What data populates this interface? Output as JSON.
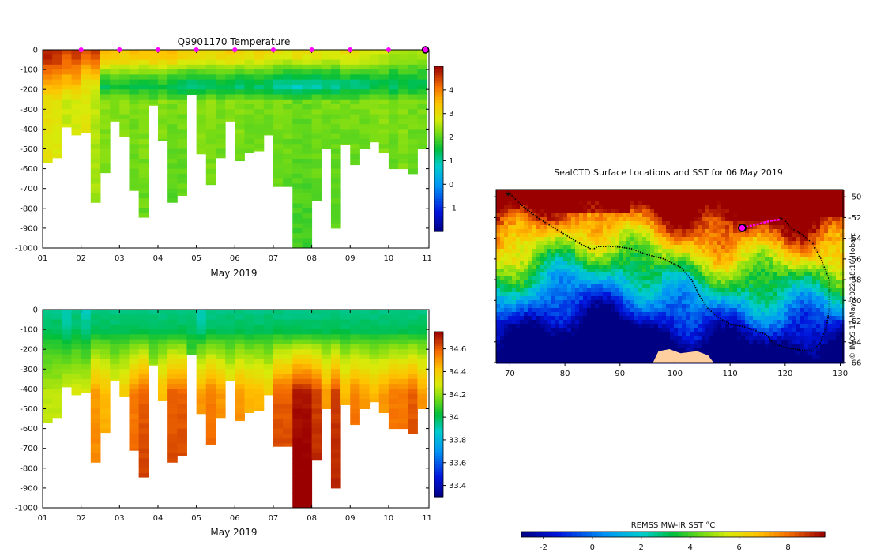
{
  "chart_data": [
    {
      "id": "temp-section",
      "type": "heatmap",
      "title": "Q9901170  Temperature",
      "xlabel": "May 2019",
      "ylabel": "",
      "xlim": [
        1,
        11.05
      ],
      "ylim": [
        -1000,
        0
      ],
      "x_ticks": [
        "01",
        "02",
        "03",
        "04",
        "05",
        "06",
        "07",
        "08",
        "09",
        "10",
        "11"
      ],
      "y_ticks": [
        "0",
        "-100",
        "-200",
        "-300",
        "-400",
        "-500",
        "-600",
        "-700",
        "-800",
        "-900",
        "-1000"
      ],
      "colorbar": {
        "min": -2,
        "max": 5,
        "ticks": [
          "-1",
          "0",
          "1",
          "2",
          "3",
          "4"
        ]
      },
      "profile_markers_day": [
        2,
        3,
        4,
        5,
        6,
        7,
        8,
        9,
        10
      ],
      "last_profile_day": 11,
      "profile_bottoms_m": [
        570,
        545,
        390,
        430,
        420,
        770,
        620,
        360,
        440,
        710,
        845,
        280,
        460,
        770,
        735,
        225,
        525,
        680,
        545,
        360,
        560,
        520,
        510,
        430,
        690,
        690,
        1000,
        1000,
        760,
        500,
        900,
        480,
        580,
        500,
        465,
        520,
        600,
        600,
        625,
        500
      ],
      "profile_surface_c": [
        4.8,
        4.7,
        4.4,
        4.6,
        4.3,
        4.5,
        3.6,
        3.5,
        3.4,
        3.5,
        3.4,
        3.5,
        3.4,
        3.5,
        3.3,
        3.2,
        3.1,
        3.0,
        3.2,
        3.3,
        3.1,
        3.0,
        3.2,
        3.1,
        3.0,
        2.9,
        3.1,
        3.0,
        3.0,
        2.9,
        2.8,
        3.0,
        3.1,
        2.9,
        2.8,
        2.7,
        2.5,
        2.4,
        2.5,
        2.5
      ],
      "profile_min_c": [
        3.6,
        3.5,
        3.4,
        3.4,
        2.9,
        2.8,
        1.3,
        1.5,
        1.5,
        1.4,
        1.4,
        1.3,
        1.5,
        1.2,
        1.1,
        1.0,
        1.1,
        1.2,
        1.3,
        1.2,
        1.1,
        1.3,
        1.2,
        1.2,
        0.9,
        0.9,
        0.8,
        0.8,
        0.9,
        1.0,
        0.9,
        1.1,
        1.0,
        1.1,
        1.3,
        1.4,
        1.1,
        1.4,
        1.3,
        1.3
      ],
      "profile_deep_c": [
        3.0,
        2.9,
        2.7,
        2.8,
        2.9,
        2.6,
        2.3,
        2.3,
        2.3,
        2.2,
        2.3,
        2.2,
        2.3,
        2.2,
        2.2,
        2.2,
        2.3,
        2.3,
        2.2,
        2.3,
        2.3,
        2.2,
        2.2,
        2.2,
        2.2,
        2.2,
        2.1,
        2.1,
        2.2,
        2.2,
        2.2,
        2.2,
        2.2,
        2.2,
        2.3,
        2.3,
        2.2,
        2.3,
        2.2,
        2.2
      ]
    },
    {
      "id": "salinity-section",
      "type": "heatmap",
      "title": "",
      "xlabel": "May 2019",
      "ylabel": "",
      "xlim": [
        1,
        11.05
      ],
      "ylim": [
        -1000,
        0
      ],
      "x_ticks": [
        "01",
        "02",
        "03",
        "04",
        "05",
        "06",
        "07",
        "08",
        "09",
        "10",
        "11"
      ],
      "y_ticks": [
        "0",
        "-100",
        "-200",
        "-300",
        "-400",
        "-500",
        "-600",
        "-700",
        "-800",
        "-900",
        "-1000"
      ],
      "colorbar": {
        "min": 33.3,
        "max": 34.75,
        "ticks": [
          "33.4",
          "33.6",
          "33.8",
          "34",
          "34.2",
          "34.4",
          "34.6"
        ]
      },
      "profile_surface_psu": [
        33.95,
        33.95,
        33.9,
        33.95,
        33.9,
        33.95,
        33.95,
        33.95,
        33.95,
        33.95,
        33.95,
        33.95,
        33.95,
        33.95,
        33.95,
        33.95,
        33.9,
        33.95,
        33.95,
        33.95,
        33.95,
        33.95,
        33.95,
        33.95,
        33.95,
        33.95,
        33.95,
        33.95,
        33.95,
        33.95,
        33.95,
        33.95,
        33.95,
        33.95,
        33.95,
        33.95,
        33.95,
        33.95,
        33.95,
        33.95
      ],
      "profile_deep_psu": [
        34.25,
        34.25,
        34.3,
        34.3,
        34.3,
        34.5,
        34.45,
        34.35,
        34.4,
        34.55,
        34.6,
        34.35,
        34.45,
        34.6,
        34.6,
        34.25,
        34.5,
        34.55,
        34.5,
        34.4,
        34.5,
        34.45,
        34.45,
        34.4,
        34.6,
        34.6,
        34.72,
        34.72,
        34.65,
        34.5,
        34.65,
        34.45,
        34.55,
        34.5,
        34.45,
        34.5,
        34.55,
        34.55,
        34.6,
        34.5
      ]
    },
    {
      "id": "sst-map",
      "type": "heatmap",
      "title": "SealCTD Surface Locations and SST for 06 May 2019",
      "xlabel": "",
      "ylabel": "",
      "xlim": [
        67.5,
        130.5
      ],
      "ylim": [
        -66,
        -49.3
      ],
      "x_ticks": [
        "70",
        "80",
        "90",
        "100",
        "110",
        "120",
        "130"
      ],
      "y_ticks": [
        "-50",
        "-52",
        "-54",
        "-56",
        "-58",
        "-60",
        "-62",
        "-64",
        "-66"
      ],
      "colorbar": {
        "label": "REMSS MW-IR SST °C",
        "min": -2.9,
        "max": 9.5,
        "ticks": [
          "-2",
          "0",
          "2",
          "4",
          "6",
          "8"
        ]
      },
      "track_lon_lat": [
        [
          70.0,
          -49.7
        ],
        [
          72.5,
          -51.0
        ],
        [
          75.0,
          -52.0
        ],
        [
          78.0,
          -53.0
        ],
        [
          80.5,
          -53.8
        ],
        [
          83.0,
          -54.6
        ],
        [
          85.0,
          -55.1
        ],
        [
          86.0,
          -54.8
        ],
        [
          89.0,
          -54.8
        ],
        [
          92.0,
          -55.0
        ],
        [
          95.0,
          -55.6
        ],
        [
          98.0,
          -56.0
        ],
        [
          101.0,
          -56.8
        ],
        [
          103.0,
          -58.0
        ],
        [
          104.5,
          -59.6
        ],
        [
          106.0,
          -60.8
        ],
        [
          108.0,
          -61.7
        ],
        [
          110.0,
          -62.3
        ],
        [
          113.0,
          -62.6
        ],
        [
          116.5,
          -63.3
        ],
        [
          118.0,
          -64.2
        ],
        [
          120.5,
          -64.6
        ],
        [
          123.0,
          -64.8
        ],
        [
          125.0,
          -64.9
        ],
        [
          126.5,
          -64.0
        ],
        [
          127.5,
          -62.5
        ],
        [
          128.0,
          -61.0
        ],
        [
          128.0,
          -58.0
        ],
        [
          126.5,
          -56.0
        ],
        [
          125.0,
          -54.5
        ],
        [
          123.0,
          -53.6
        ],
        [
          121.0,
          -53.0
        ],
        [
          120.0,
          -52.3
        ],
        [
          119.0,
          -52.0
        ]
      ],
      "highlight_lon_lat": [
        [
          119.0,
          -52.2
        ],
        [
          117.5,
          -52.3
        ],
        [
          116.0,
          -52.5
        ],
        [
          114.5,
          -52.7
        ],
        [
          113.0,
          -52.9
        ],
        [
          112.2,
          -53.0
        ]
      ],
      "last_position": [
        112.2,
        -53.0
      ],
      "start_position": [
        70.0,
        -49.7
      ],
      "side_label": "© IMOS 17-May-2022 18:10 Hobart"
    }
  ]
}
